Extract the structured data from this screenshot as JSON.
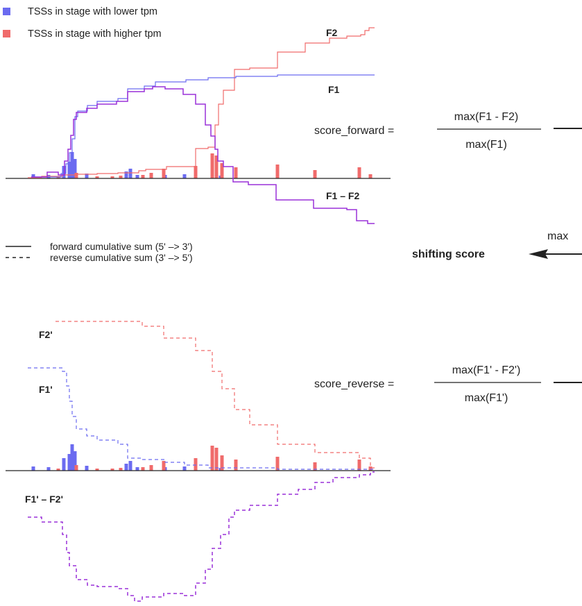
{
  "legend": {
    "lower_tpm": {
      "label": "TSSs in stage with lower tpm",
      "color": "#6b6bf0"
    },
    "higher_tpm": {
      "label": "TSSs in stage with higher tpm",
      "color": "#f06b6b"
    },
    "forward": {
      "label": "forward cumulative sum (5' –> 3')"
    },
    "reverse": {
      "label": "reverse cumulative sum (3' –> 5')"
    }
  },
  "colors": {
    "F1": "#6b6bf0",
    "F2": "#f06b6b",
    "diff": "#9a30d8",
    "axis": "#222222"
  },
  "curve_labels": {
    "F1": "F1",
    "F2": "F2",
    "diff": "F1 – F2",
    "F1_rev": "F1'",
    "F2_rev": "F2'",
    "diff_rev": "F1' – F2'"
  },
  "formulas": {
    "forward": {
      "lhs": "score_forward =",
      "numerator": "max(F1 - F2)",
      "denominator": "max(F1)"
    },
    "reverse": {
      "lhs": "score_reverse =",
      "numerator": "max(F1' - F2')",
      "denominator": "max(F1')"
    }
  },
  "result": {
    "max_label": "max",
    "title": "shifting score"
  },
  "bars": {
    "lower": [
      [
        48,
        6
      ],
      [
        70,
        5
      ],
      [
        92,
        18
      ],
      [
        100,
        24
      ],
      [
        104,
        38
      ],
      [
        108,
        28
      ],
      [
        125,
        7
      ],
      [
        182,
        10
      ],
      [
        188,
        14
      ],
      [
        198,
        5
      ],
      [
        238,
        5
      ],
      [
        266,
        6
      ],
      [
        318,
        4
      ]
    ],
    "higher": [
      [
        84,
        3
      ],
      [
        110,
        8
      ],
      [
        140,
        3
      ],
      [
        162,
        3
      ],
      [
        174,
        4
      ],
      [
        206,
        5
      ],
      [
        218,
        8
      ],
      [
        236,
        14
      ],
      [
        282,
        18
      ],
      [
        306,
        36
      ],
      [
        312,
        33
      ],
      [
        320,
        22
      ],
      [
        340,
        16
      ],
      [
        400,
        20
      ],
      [
        454,
        12
      ],
      [
        518,
        16
      ],
      [
        534,
        6
      ]
    ]
  }
}
